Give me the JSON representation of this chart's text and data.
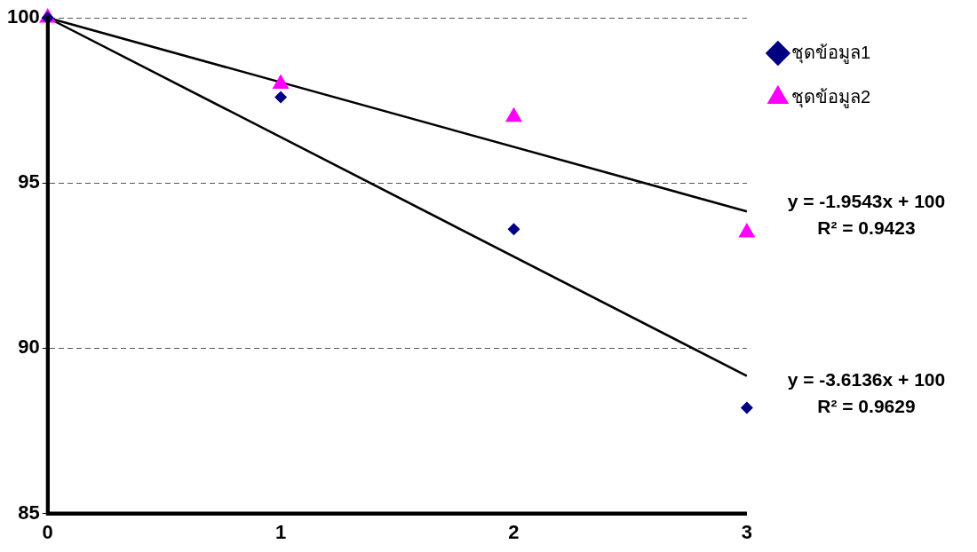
{
  "chart_data": {
    "type": "scatter",
    "xlim": [
      0,
      3
    ],
    "xticks": [
      0,
      1,
      2,
      3
    ],
    "ylim": [
      85,
      100
    ],
    "yticks": [
      85,
      90,
      95,
      100
    ],
    "grid": "y",
    "legend": "top right",
    "series": [
      {
        "name": "ชุดข้อมูล1",
        "color": "#000080",
        "marker": "diamond",
        "x": [
          0,
          1,
          2,
          3
        ],
        "values": [
          100,
          97.6,
          93.6,
          88.2
        ]
      },
      {
        "name": "ชุดข้อมูล2",
        "color": "#ff00ff",
        "marker": "triangle",
        "x": [
          0,
          1,
          2,
          3
        ],
        "values": [
          100,
          98.0,
          97.0,
          93.5
        ]
      },
      {
        "type": "line",
        "color": "#000000",
        "marker": "none",
        "x": [
          0,
          3
        ],
        "values": [
          100,
          94.14
        ]
      },
      {
        "type": "line",
        "color": "#000000",
        "marker": "none",
        "x": [
          0,
          3
        ],
        "values": [
          100,
          89.16
        ]
      }
    ],
    "annotations": [
      "y = -1.9543x + 100\nR² = 0.9423",
      "y = -3.6136x + 100\nR² = 0.9629"
    ]
  }
}
